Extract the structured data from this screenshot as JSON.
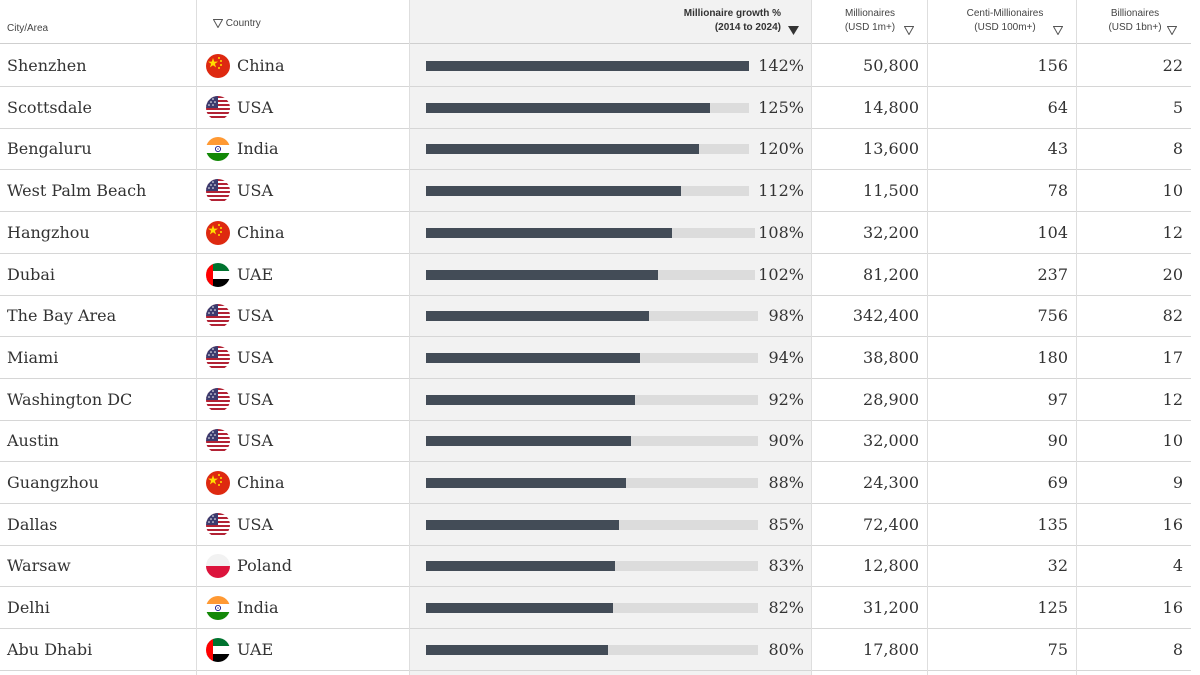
{
  "header": {
    "city": "City/Area",
    "country": "Country",
    "growth_line1": "Millionaire growth %",
    "growth_line2": "(2014 to 2024)",
    "millionaires_line1": "Millionaires",
    "millionaires_line2": "(USD 1m+)",
    "centi_line1": "Centi-Millionaires",
    "centi_line2": "(USD 100m+)",
    "billionaires_line1": "Billionaires",
    "billionaires_line2": "(USD 1bn+)"
  },
  "rows": [
    {
      "city": "Shenzhen",
      "country": "China",
      "flag": "china-flag-icon",
      "growth": "142%",
      "growth_value": 142,
      "millionaires": "50,800",
      "centi": "156",
      "billionaires": "22"
    },
    {
      "city": "Scottsdale",
      "country": "USA",
      "flag": "usa-flag-icon",
      "growth": "125%",
      "growth_value": 125,
      "millionaires": "14,800",
      "centi": "64",
      "billionaires": "5"
    },
    {
      "city": "Bengaluru",
      "country": "India",
      "flag": "india-flag-icon",
      "growth": "120%",
      "growth_value": 120,
      "millionaires": "13,600",
      "centi": "43",
      "billionaires": "8"
    },
    {
      "city": "West Palm Beach",
      "country": "USA",
      "flag": "usa-flag-icon",
      "growth": "112%",
      "growth_value": 112,
      "millionaires": "11,500",
      "centi": "78",
      "billionaires": "10"
    },
    {
      "city": "Hangzhou",
      "country": "China",
      "flag": "china-flag-icon",
      "growth": "108%",
      "growth_value": 108,
      "millionaires": "32,200",
      "centi": "104",
      "billionaires": "12"
    },
    {
      "city": "Dubai",
      "country": "UAE",
      "flag": "uae-flag-icon",
      "growth": "102%",
      "growth_value": 102,
      "millionaires": "81,200",
      "centi": "237",
      "billionaires": "20"
    },
    {
      "city": "The Bay Area",
      "country": "USA",
      "flag": "usa-flag-icon",
      "growth": "98%",
      "growth_value": 98,
      "millionaires": "342,400",
      "centi": "756",
      "billionaires": "82"
    },
    {
      "city": "Miami",
      "country": "USA",
      "flag": "usa-flag-icon",
      "growth": "94%",
      "growth_value": 94,
      "millionaires": "38,800",
      "centi": "180",
      "billionaires": "17"
    },
    {
      "city": "Washington DC",
      "country": "USA",
      "flag": "usa-flag-icon",
      "growth": "92%",
      "growth_value": 92,
      "millionaires": "28,900",
      "centi": "97",
      "billionaires": "12"
    },
    {
      "city": "Austin",
      "country": "USA",
      "flag": "usa-flag-icon",
      "growth": "90%",
      "growth_value": 90,
      "millionaires": "32,000",
      "centi": "90",
      "billionaires": "10"
    },
    {
      "city": "Guangzhou",
      "country": "China",
      "flag": "china-flag-icon",
      "growth": "88%",
      "growth_value": 88,
      "millionaires": "24,300",
      "centi": "69",
      "billionaires": "9"
    },
    {
      "city": "Dallas",
      "country": "USA",
      "flag": "usa-flag-icon",
      "growth": "85%",
      "growth_value": 85,
      "millionaires": "72,400",
      "centi": "135",
      "billionaires": "16"
    },
    {
      "city": "Warsaw",
      "country": "Poland",
      "flag": "poland-flag-icon",
      "growth": "83%",
      "growth_value": 83,
      "millionaires": "12,800",
      "centi": "32",
      "billionaires": "4"
    },
    {
      "city": "Delhi",
      "country": "India",
      "flag": "india-flag-icon",
      "growth": "82%",
      "growth_value": 82,
      "millionaires": "31,200",
      "centi": "125",
      "billionaires": "16"
    },
    {
      "city": "Abu Dhabi",
      "country": "UAE",
      "flag": "uae-flag-icon",
      "growth": "80%",
      "growth_value": 80,
      "millionaires": "17,800",
      "centi": "75",
      "billionaires": "8"
    }
  ],
  "colors": {
    "bar": "#434c57",
    "bar_track": "#dcdcdc",
    "highlight_column": "#f2f2f2"
  }
}
